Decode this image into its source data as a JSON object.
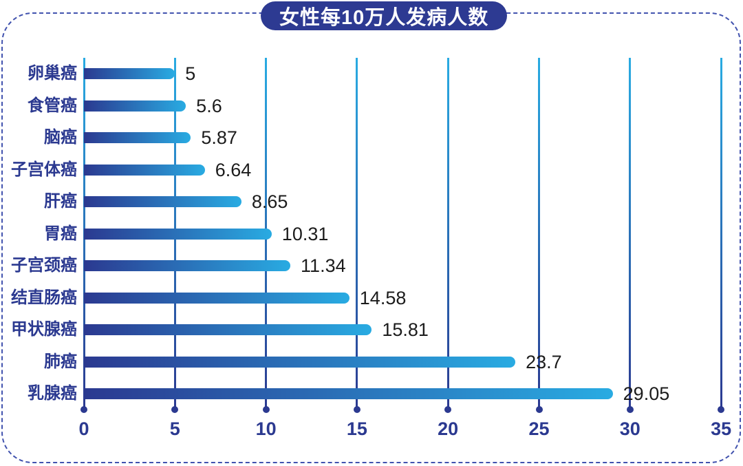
{
  "chart_data": {
    "type": "bar",
    "orientation": "horizontal",
    "title": "女性每10万人发病人数",
    "categories": [
      "卵巢癌",
      "食管癌",
      "脑癌",
      "子宫体癌",
      "肝癌",
      "胃癌",
      "子宫颈癌",
      "结直肠癌",
      "甲状腺癌",
      "肺癌",
      "乳腺癌"
    ],
    "values": [
      5,
      5.6,
      5.87,
      6.64,
      8.65,
      10.31,
      11.34,
      14.58,
      15.81,
      23.7,
      29.05
    ],
    "value_labels": [
      "5",
      "5.6",
      "5.87",
      "6.64",
      "8.65",
      "10.31",
      "11.34",
      "14.58",
      "15.81",
      "23.7",
      "29.05"
    ],
    "x_ticks": [
      0,
      5,
      10,
      15,
      20,
      25,
      30,
      35
    ],
    "xlim": [
      0,
      35
    ],
    "grid": "vertical-gridlines-with-end-dots",
    "legend": "none",
    "colors": {
      "bar_gradient_start": "#2b3990",
      "bar_gradient_end": "#29abe2",
      "grid_top": "#29abe2",
      "grid_bottom": "#2b3990",
      "axis_label": "#2b3990",
      "category_label": "#2b3990",
      "value_label": "#1c1c1c",
      "title_background": "#2d3a92",
      "title_text": "#ffffff",
      "border": "#4152ae"
    }
  }
}
